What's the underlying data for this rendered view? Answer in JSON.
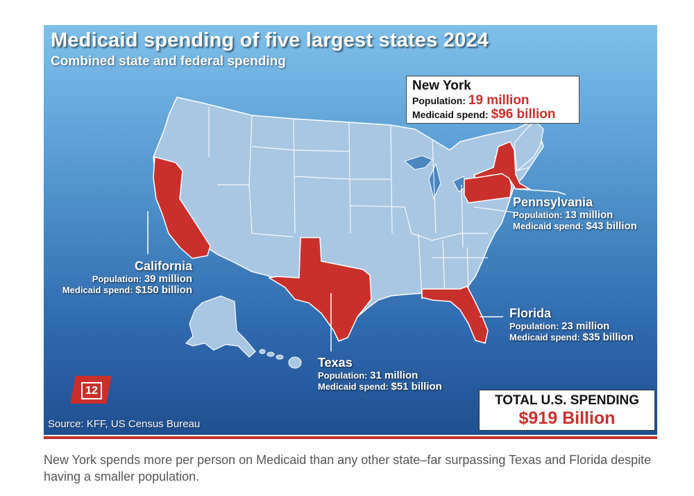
{
  "title": "Medicaid spending of five largest states 2024",
  "subtitle": "Combined state and federal spending",
  "colors": {
    "highlight_state": "#c9302c",
    "other_state": "#a9c6e2",
    "ocean_top": "#7fc0ea",
    "ocean_bottom": "#1f4f91"
  },
  "states": {
    "new_york": {
      "name": "New York",
      "population_label": "Population:",
      "population": "19 million",
      "spend_label": "Medicaid spend:",
      "spend": "$96 billion"
    },
    "pennsylvania": {
      "name": "Pennsylvania",
      "population_label": "Population:",
      "population": "13 million",
      "spend_label": "Medicaid spend:",
      "spend": "$43 billion"
    },
    "california": {
      "name": "California",
      "population_label": "Population:",
      "population": "39 million",
      "spend_label": "Medicaid spend:",
      "spend": "$150 billion"
    },
    "florida": {
      "name": "Florida",
      "population_label": "Population:",
      "population": "23 million",
      "spend_label": "Medicaid spend:",
      "spend": "$35 billion"
    },
    "texas": {
      "name": "Texas",
      "population_label": "Population:",
      "population": "31 million",
      "spend_label": "Medicaid spend:",
      "spend": "$51 billion"
    }
  },
  "page_badge": "12",
  "source": "Source: KFF, US Census Bureau",
  "total": {
    "label": "TOTAL U.S. SPENDING",
    "value": "$919 Billion"
  },
  "caption": "New York spends more per person on Medicaid than any other state–far surpassing Texas and Florida despite having a smaller population."
}
